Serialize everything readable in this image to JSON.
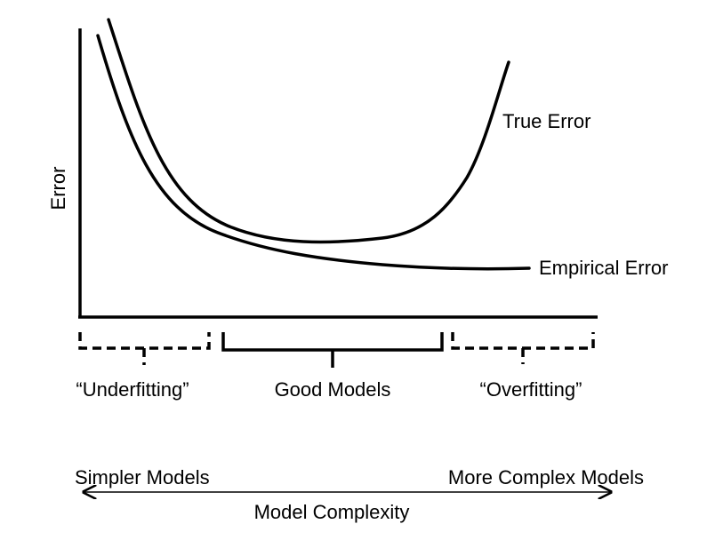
{
  "figure": {
    "y_axis_label": "Error",
    "curves": {
      "true_error": "True Error",
      "empirical_error": "Empirical Error"
    },
    "regions": [
      {
        "label": "“Underfitting”",
        "style": "dashed"
      },
      {
        "label": "Good Models",
        "style": "solid"
      },
      {
        "label": "“Overfitting”",
        "style": "dashed"
      }
    ],
    "complexity_axis": {
      "left_label": "Simpler Models",
      "right_label": "More Complex Models",
      "title": "Model Complexity"
    }
  }
}
